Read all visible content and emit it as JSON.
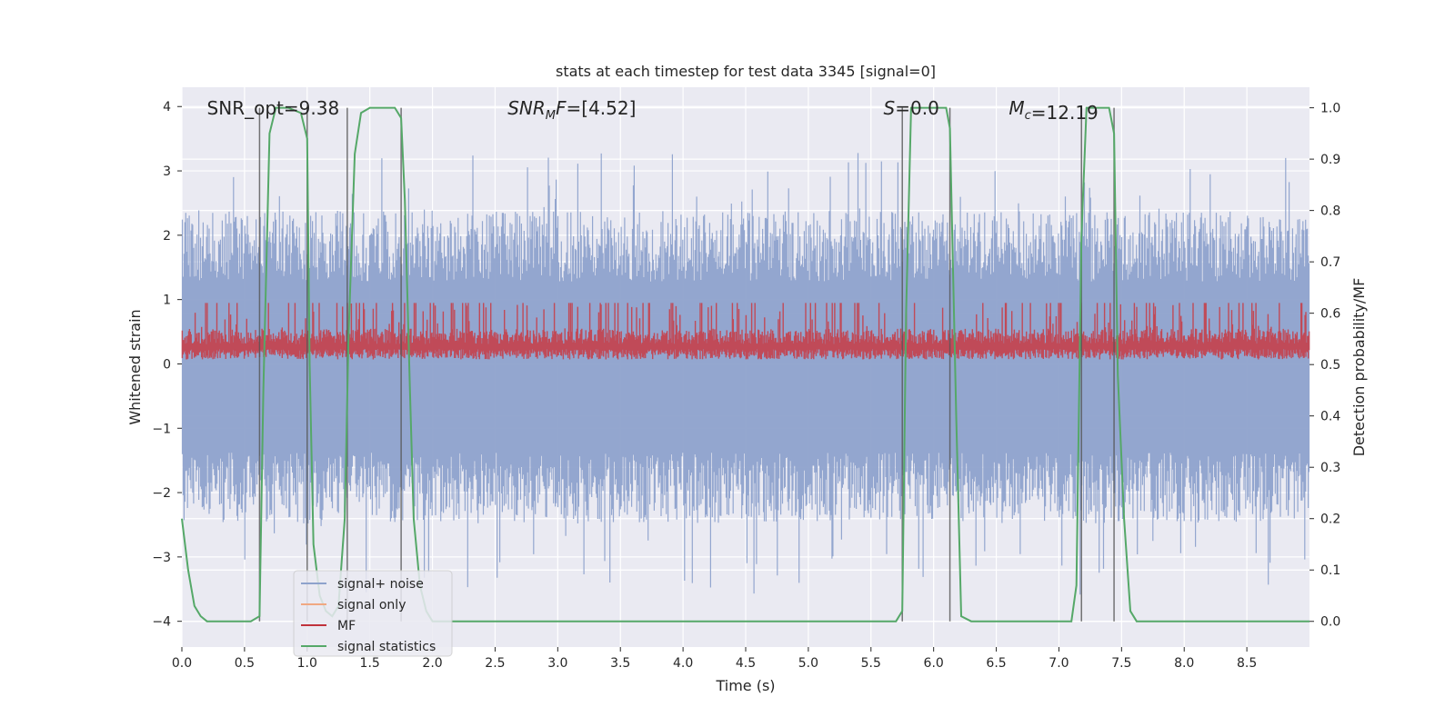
{
  "chart_data": {
    "type": "line",
    "title": "stats at each timestep for test data 3345 [signal=0]",
    "xlabel": "Time (s)",
    "ylabel_left": "Whitened strain",
    "ylabel_right": "Detection probability/MF",
    "xlim": [
      0,
      9.0
    ],
    "ylim_left": [
      -4.4,
      4.3
    ],
    "ylim_right": [
      -0.05,
      1.04
    ],
    "x_ticks": [
      0.0,
      0.5,
      1.0,
      1.5,
      2.0,
      2.5,
      3.0,
      3.5,
      4.0,
      4.5,
      5.0,
      5.5,
      6.0,
      6.5,
      7.0,
      7.5,
      8.0,
      8.5
    ],
    "x_tick_labels": [
      "0.0",
      "0.5",
      "1.0",
      "1.5",
      "2.0",
      "2.5",
      "3.0",
      "3.5",
      "4.0",
      "4.5",
      "5.0",
      "5.5",
      "6.0",
      "6.5",
      "7.0",
      "7.5",
      "8.0",
      "8.5"
    ],
    "y_left_ticks": [
      4,
      3,
      2,
      1,
      0,
      -1,
      -2,
      -3,
      -4
    ],
    "y_left_tick_labels": [
      "4",
      "3",
      "2",
      "1",
      "0",
      "−1",
      "−2",
      "−3",
      "−4"
    ],
    "y_right_ticks": [
      1.0,
      0.9,
      0.8,
      0.7,
      0.6,
      0.5,
      0.4,
      0.3,
      0.2,
      0.1,
      0.0
    ],
    "y_right_tick_labels": [
      "1.0",
      "0.9",
      "0.8",
      "0.7",
      "0.6",
      "0.5",
      "0.4",
      "0.3",
      "0.2",
      "0.1",
      "0.0"
    ],
    "annotations": [
      {
        "text": "SNR_opt=9.38",
        "x": 0.2
      },
      {
        "text": "SNR_MF=[4.52]",
        "x": 2.6
      },
      {
        "text": "S=0.0",
        "x": 5.6
      },
      {
        "text": "M_c=12.19",
        "x": 6.6
      }
    ],
    "noise_band": {
      "typical_min": -1.6,
      "typical_max": 1.5,
      "peak_min": -3.6,
      "peak_max": 3.3
    },
    "mf_band": {
      "min_prob": 0.51,
      "max_prob": 0.62
    },
    "detection_windows": [
      {
        "start": 0.62,
        "end": 1.0
      },
      {
        "start": 1.32,
        "end": 1.75
      },
      {
        "start": 5.75,
        "end": 6.13
      },
      {
        "start": 7.18,
        "end": 7.44
      }
    ],
    "signal_statistics": {
      "x": [
        0.0,
        0.05,
        0.1,
        0.15,
        0.2,
        0.3,
        0.55,
        0.62,
        0.65,
        0.7,
        0.75,
        0.85,
        0.95,
        1.0,
        1.02,
        1.05,
        1.1,
        1.15,
        1.2,
        1.25,
        1.3,
        1.33,
        1.38,
        1.43,
        1.5,
        1.7,
        1.75,
        1.78,
        1.82,
        1.85,
        1.9,
        1.95,
        2.0,
        2.3,
        2.5,
        2.7,
        5.7,
        5.75,
        5.78,
        5.82,
        6.1,
        6.13,
        6.18,
        6.22,
        6.3,
        7.1,
        7.14,
        7.18,
        7.22,
        7.4,
        7.44,
        7.47,
        7.52,
        7.57,
        7.62,
        9.0
      ],
      "values": [
        0.2,
        0.1,
        0.03,
        0.01,
        0.0,
        0.0,
        0.0,
        0.01,
        0.45,
        0.95,
        1.0,
        1.0,
        0.99,
        0.94,
        0.5,
        0.15,
        0.05,
        0.02,
        0.01,
        0.03,
        0.2,
        0.55,
        0.91,
        0.99,
        1.0,
        1.0,
        0.98,
        0.82,
        0.45,
        0.2,
        0.07,
        0.02,
        0.0,
        0.0,
        0.0,
        0.0,
        0.0,
        0.02,
        0.6,
        1.0,
        1.0,
        0.96,
        0.4,
        0.01,
        0.0,
        0.0,
        0.07,
        0.75,
        1.0,
        1.0,
        0.95,
        0.48,
        0.2,
        0.02,
        0.0,
        0.0
      ]
    },
    "vertical_markers": [
      0.62,
      1.0,
      1.32,
      1.75,
      5.75,
      6.13,
      7.18,
      7.44
    ],
    "legend": {
      "position": "lower-left",
      "items": [
        {
          "label": "signal+ noise",
          "color": "#8ea2cc"
        },
        {
          "label": "signal only",
          "color": "#f0a882"
        },
        {
          "label": "MF",
          "color": "#c0323c"
        },
        {
          "label": "signal statistics",
          "color": "#55a868"
        }
      ]
    },
    "colors": {
      "background": "#eaeaf2",
      "grid": "#ffffff",
      "noise": "#8ea2cc",
      "mf": "#c5404a",
      "stats": "#55a868",
      "marker": "#555555"
    }
  }
}
